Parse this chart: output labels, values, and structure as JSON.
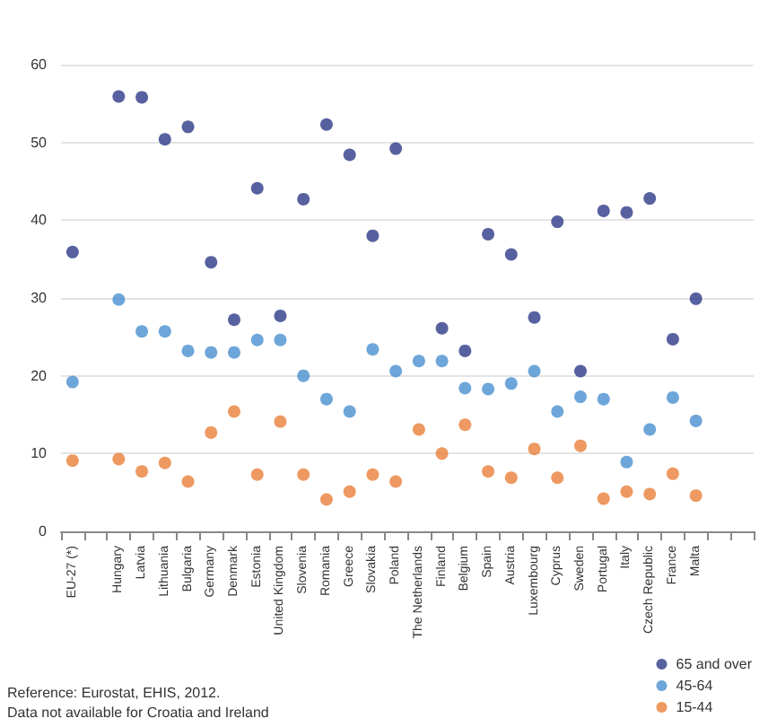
{
  "chart_data": {
    "type": "scatter",
    "categories": [
      "EU-27 (*)",
      null,
      "Hungary",
      "Latvia",
      "Lithuania",
      "Bulgaria",
      "Germany",
      "Denmark",
      "Estonia",
      "United Kingdom",
      "Slovenia",
      "Romania",
      "Greece",
      "Slovakia",
      "Poland",
      "The Netherlands",
      "Finland",
      "Belgium",
      "Spain",
      "Austria",
      "Luxembourg",
      "Cyprus",
      "Sweden",
      "Portugal",
      "Italy",
      "Czech Republic",
      "France",
      "Malta",
      null,
      null
    ],
    "series": [
      {
        "name": "65 and over",
        "color": "#2e3a87",
        "values": [
          35.9,
          null,
          55.9,
          55.8,
          50.4,
          52,
          34.6,
          27.2,
          44.1,
          27.7,
          42.7,
          52.3,
          48.4,
          38,
          49.2,
          null,
          26.1,
          23.2,
          38.2,
          35.6,
          27.5,
          39.8,
          20.6,
          41.2,
          41,
          42.8,
          24.7,
          29.9,
          null,
          null
        ]
      },
      {
        "name": "45-64",
        "color": "#4a90d0",
        "values": [
          19.2,
          null,
          29.8,
          25.7,
          25.7,
          23.2,
          23,
          23,
          24.6,
          24.6,
          20,
          17,
          15.4,
          23.4,
          20.6,
          21.9,
          21.9,
          18.4,
          18.3,
          19,
          20.6,
          15.4,
          17.3,
          17,
          8.9,
          13.1,
          17.2,
          14.2,
          null,
          null
        ]
      },
      {
        "name": "15-44",
        "color": "#e8803a",
        "values": [
          9.1,
          null,
          9.3,
          7.7,
          8.8,
          6.4,
          12.7,
          15.4,
          7.3,
          14.1,
          7.3,
          4.1,
          5.1,
          7.3,
          6.4,
          13.1,
          10,
          13.7,
          7.7,
          6.9,
          10.6,
          6.9,
          11,
          4.2,
          5.1,
          4.8,
          7.4,
          4.6,
          null,
          null
        ]
      }
    ],
    "ylim": [
      0,
      60
    ],
    "yticks": [
      0,
      10,
      20,
      30,
      40,
      50,
      60
    ],
    "grid": "y",
    "legend": "bottom right",
    "marker": "circle",
    "annotations": [
      "Reference: Eurostat, EHIS, 2012.",
      "Data not available for Croatia and Ireland"
    ]
  }
}
